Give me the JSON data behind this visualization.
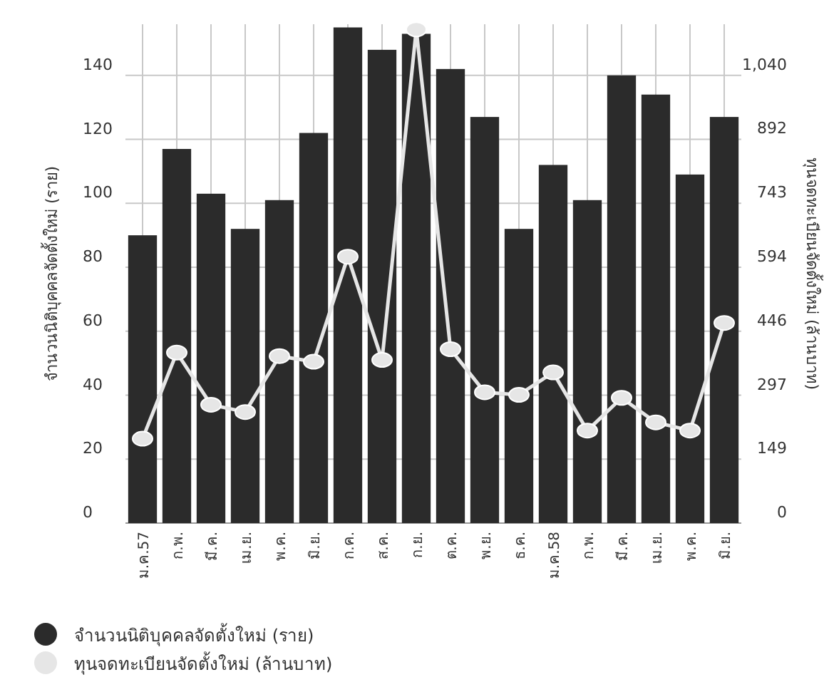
{
  "chart_data": {
    "type": "bar",
    "categories": [
      "ม.ค.57",
      "ก.พ.",
      "มี.ค.",
      "เม.ย.",
      "พ.ค.",
      "มิ.ย.",
      "ก.ค.",
      "ส.ค.",
      "ก.ย.",
      "ต.ค.",
      "พ.ย.",
      "ธ.ค.",
      "ม.ค.58",
      "ก.พ.",
      "มี.ค.",
      "เม.ย.",
      "พ.ค.",
      "มิ.ย."
    ],
    "series": [
      {
        "name": "จำนวนนิติบุคคลจัดตั้งใหม่ (ราย)",
        "color": "#2b2b2b",
        "values": [
          90,
          117,
          103,
          92,
          101,
          122,
          155,
          148,
          153,
          142,
          127,
          92,
          112,
          101,
          140,
          134,
          109,
          127
        ]
      },
      {
        "name": "ทุนจดทะเบียนจัดตั้งใหม่ (ล้านบาท)",
        "type": "line",
        "axis": "y2",
        "color": "#e6e6e6",
        "marker": "circle",
        "line_style": "solid",
        "values": [
          196,
          396,
          275,
          258,
          388,
          375,
          619,
          379,
          1147,
          404,
          304,
          298,
          350,
          215,
          291,
          234,
          215,
          465
        ]
      }
    ],
    "ylabel": "จำนวนนิติบุคคลจัดตั้งใหม่ (ราย)",
    "y2label": "ทุนจดทะเบียนจัดตั้งใหม่ (ล้านบาท)",
    "ylim": [
      0,
      156
    ],
    "yticks": [
      0,
      20,
      40,
      60,
      80,
      100,
      120,
      140
    ],
    "y2lim": [
      0,
      1159
    ],
    "y2ticks": [
      0,
      149,
      297,
      446,
      594,
      743,
      892,
      {
        "value": 1040,
        "label": "1,040"
      }
    ],
    "grid": true,
    "legend": "bottom left"
  }
}
